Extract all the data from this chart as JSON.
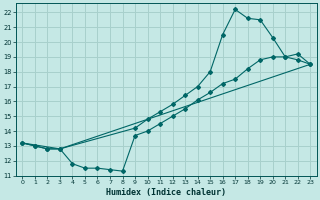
{
  "xlabel": "Humidex (Indice chaleur)",
  "background_color": "#c5e8e5",
  "grid_color": "#a8d0cc",
  "line_color": "#006666",
  "xlim": [
    -0.5,
    23.5
  ],
  "ylim": [
    11,
    22.6
  ],
  "xticks": [
    0,
    1,
    2,
    3,
    4,
    5,
    6,
    7,
    8,
    9,
    10,
    11,
    12,
    13,
    14,
    15,
    16,
    17,
    18,
    19,
    20,
    21,
    22,
    23
  ],
  "yticks": [
    11,
    12,
    13,
    14,
    15,
    16,
    17,
    18,
    19,
    20,
    21,
    22
  ],
  "line1_x": [
    0,
    1,
    2,
    3,
    4,
    5,
    6,
    7,
    8,
    9,
    10,
    11,
    12,
    13,
    14,
    15,
    16,
    17,
    18,
    19,
    20,
    21,
    22,
    23
  ],
  "line1_y": [
    13.2,
    13.0,
    12.8,
    12.8,
    11.8,
    11.5,
    11.5,
    11.4,
    11.3,
    13.7,
    14.0,
    14.5,
    15.0,
    15.5,
    16.1,
    16.6,
    17.2,
    17.5,
    18.2,
    18.8,
    19.0,
    19.0,
    18.8,
    18.5
  ],
  "line2_x": [
    0,
    1,
    2,
    3,
    9,
    10,
    11,
    12,
    13,
    14,
    15,
    16,
    17,
    18,
    19,
    20,
    21,
    22,
    23
  ],
  "line2_y": [
    13.2,
    13.0,
    12.8,
    12.8,
    14.2,
    14.8,
    15.3,
    15.8,
    16.4,
    17.0,
    18.0,
    20.5,
    22.2,
    21.6,
    21.5,
    20.3,
    19.0,
    19.2,
    18.5
  ],
  "line3_x": [
    0,
    3,
    23
  ],
  "line3_y": [
    13.2,
    12.8,
    18.5
  ]
}
